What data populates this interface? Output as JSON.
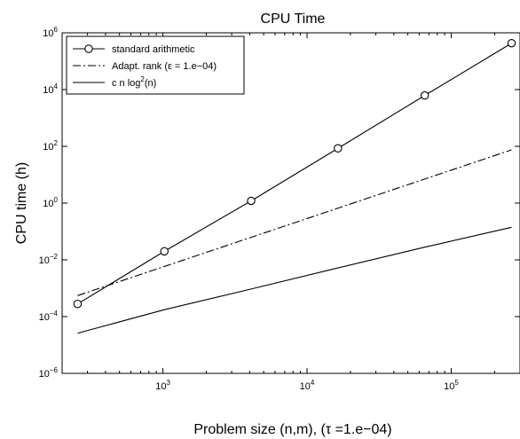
{
  "chart_data": {
    "type": "line",
    "title": "CPU Time",
    "xlabel": "Problem size (n,m), (τ =1.e−04)",
    "ylabel": "CPU time (h)",
    "xscale": "log",
    "yscale": "log",
    "xlim": [
      200,
      300000
    ],
    "ylim": [
      1e-06,
      1000000
    ],
    "x_ticks": [
      {
        "value": 1000,
        "base": "10",
        "exp": "3"
      },
      {
        "value": 10000,
        "base": "10",
        "exp": "4"
      },
      {
        "value": 100000,
        "base": "10",
        "exp": "5"
      }
    ],
    "y_ticks": [
      {
        "value": 1e-06,
        "base": "10",
        "exp": "−6"
      },
      {
        "value": 0.0001,
        "base": "10",
        "exp": "−4"
      },
      {
        "value": 0.01,
        "base": "10",
        "exp": "−2"
      },
      {
        "value": 1,
        "base": "10",
        "exp": "0"
      },
      {
        "value": 100,
        "base": "10",
        "exp": "2"
      },
      {
        "value": 10000,
        "base": "10",
        "exp": "4"
      },
      {
        "value": 1000000,
        "base": "10",
        "exp": "6"
      }
    ],
    "grid": false,
    "legend_position": "top-left",
    "series": [
      {
        "name": "standard arithmetic",
        "style": "solid-circle-markers",
        "color": "#000000",
        "x": [
          256,
          1024,
          4096,
          16384,
          65536,
          262144
        ],
        "y": [
          0.00028,
          0.02,
          1.2,
          85,
          6200,
          430000
        ]
      },
      {
        "name": "Adapt. rank (ε = 1.e−04)",
        "style": "dash-dot",
        "color": "#000000",
        "x": [
          256,
          262144
        ],
        "y": [
          0.00055,
          75
        ]
      },
      {
        "name": "c n log2(n)",
        "name_parts": {
          "pre": "c n log",
          "sup": "2",
          "post": "(n)"
        },
        "style": "solid",
        "color": "#000000",
        "x": [
          256,
          1024,
          4096,
          16384,
          65536,
          262144
        ],
        "y": [
          2.6e-05,
          0.000175,
          0.00094,
          0.0052,
          0.028,
          0.14
        ]
      }
    ]
  }
}
